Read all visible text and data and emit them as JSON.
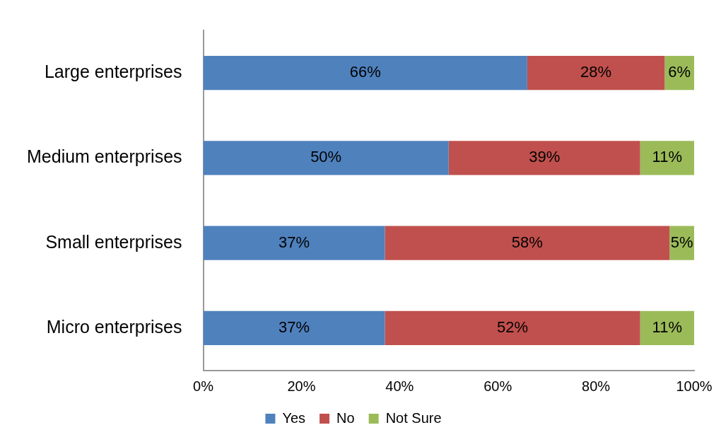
{
  "chart_data": {
    "type": "bar",
    "orientation": "horizontal",
    "stacked": true,
    "categories": [
      "Large enterprises",
      "Medium enterprises",
      "Small enterprises",
      "Micro enterprises"
    ],
    "series": [
      {
        "name": "Yes",
        "color": "#4f81bd",
        "values": [
          66,
          50,
          37,
          37
        ],
        "value_labels": [
          "66%",
          "50%",
          "37%",
          "37%"
        ]
      },
      {
        "name": "No",
        "color": "#c0504d",
        "values": [
          28,
          39,
          58,
          52
        ],
        "value_labels": [
          "28%",
          "39%",
          "58%",
          "52%"
        ]
      },
      {
        "name": "Not Sure",
        "color": "#9bbb59",
        "values": [
          6,
          11,
          5,
          11
        ],
        "value_labels": [
          "6%",
          "11%",
          "5%",
          "11%"
        ]
      }
    ],
    "xlim": [
      0,
      100
    ],
    "xticks": [
      {
        "value": 0,
        "label": "0%"
      },
      {
        "value": 20,
        "label": "20%"
      },
      {
        "value": 40,
        "label": "40%"
      },
      {
        "value": 60,
        "label": "60%"
      },
      {
        "value": 80,
        "label": "80%"
      },
      {
        "value": 100,
        "label": "100%"
      }
    ],
    "grid": false,
    "legend": "bottom"
  }
}
